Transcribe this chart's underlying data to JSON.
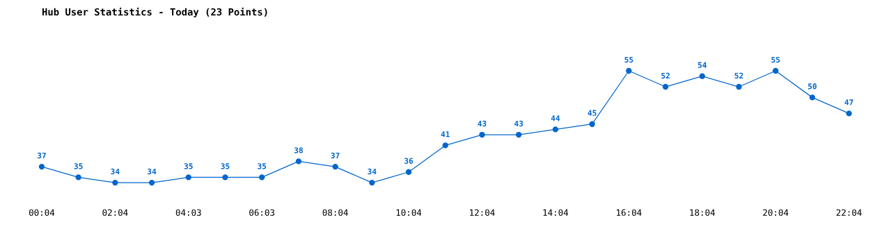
{
  "chart_data": {
    "type": "line",
    "title": "Hub User Statistics - Today (23 Points)",
    "categories": [
      "00:04",
      null,
      "02:04",
      null,
      "04:03",
      null,
      "06:03",
      null,
      "08:04",
      null,
      "10:04",
      null,
      "12:04",
      null,
      "14:04",
      null,
      "16:04",
      null,
      "18:04",
      null,
      "20:04",
      null,
      "22:04"
    ],
    "series": [
      {
        "color": "#0066cc",
        "values": [
          37,
          35,
          34,
          34,
          35,
          35,
          35,
          38,
          37,
          34,
          36,
          41,
          43,
          43,
          44,
          45,
          55,
          52,
          54,
          52,
          55,
          50,
          47
        ]
      }
    ],
    "data_labels": true,
    "marker": "circle",
    "line_style": "solid",
    "grid": false
  }
}
